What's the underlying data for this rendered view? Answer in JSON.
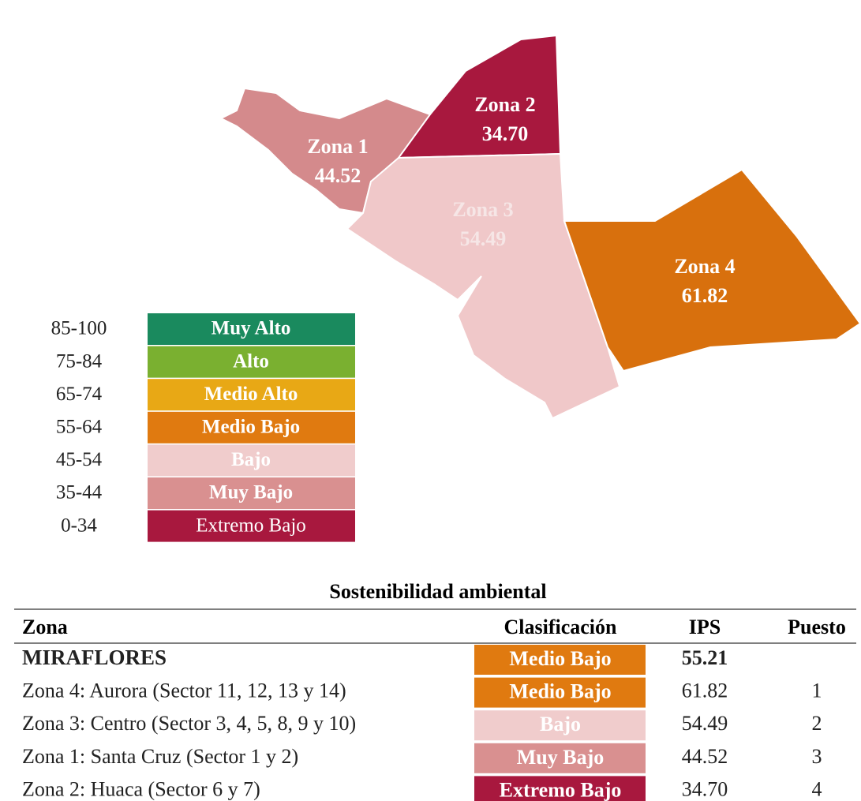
{
  "map": {
    "zones": [
      {
        "label": "Zona 1",
        "value": "44.52",
        "color": "#d48a8c"
      },
      {
        "label": "Zona 2",
        "value": "34.70",
        "color": "#a8183e"
      },
      {
        "label": "Zona 3",
        "value": "54.49",
        "color": "#f0c8c9"
      },
      {
        "label": "Zona 4",
        "value": "61.82",
        "color": "#d8700d"
      }
    ]
  },
  "legend": [
    {
      "range": "85-100",
      "label": "Muy Alto",
      "color": "#1a8a5e"
    },
    {
      "range": "75-84",
      "label": "Alto",
      "color": "#7ab030"
    },
    {
      "range": "65-74",
      "label": "Medio Alto",
      "color": "#e8a815"
    },
    {
      "range": "55-64",
      "label": "Medio Bajo",
      "color": "#e07a10"
    },
    {
      "range": "45-54",
      "label": "Bajo",
      "color": "#f0cccc"
    },
    {
      "range": "35-44",
      "label": "Muy Bajo",
      "color": "#d99090"
    },
    {
      "range": "0-34",
      "label": "Extremo Bajo",
      "color": "#a8183e"
    }
  ],
  "table": {
    "title": "Sostenibilidad ambiental",
    "headers": [
      "Zona",
      "Clasificación",
      "IPS",
      "Puesto"
    ],
    "rows": [
      {
        "zona": "MIRAFLORES",
        "clasificacion": "Medio Bajo",
        "ips": "55.21",
        "color": "#e07a10"
      },
      {
        "zona": "Zona 4: Aurora (Sector 11, 12, 13 y 14)",
        "clasificacion": "Medio Bajo",
        "ips": "61.82",
        "puesto": "1",
        "color": "#e07a10"
      },
      {
        "zona": "Zona 3: Centro (Sector 3, 4, 5, 8, 9 y 10)",
        "clasificacion": "Bajo",
        "ips": "54.49",
        "puesto": "2",
        "color": "#f0cccc"
      },
      {
        "zona": "Zona 1: Santa Cruz  (Sector 1 y 2)",
        "clasificacion": "Muy Bajo",
        "ips": "44.52",
        "puesto": "3",
        "color": "#d99090"
      },
      {
        "zona": "Zona 2: Huaca (Sector 6 y 7)",
        "clasificacion": "Extremo Bajo",
        "ips": "34.70",
        "puesto": "4",
        "color": "#a8183e"
      }
    ]
  }
}
